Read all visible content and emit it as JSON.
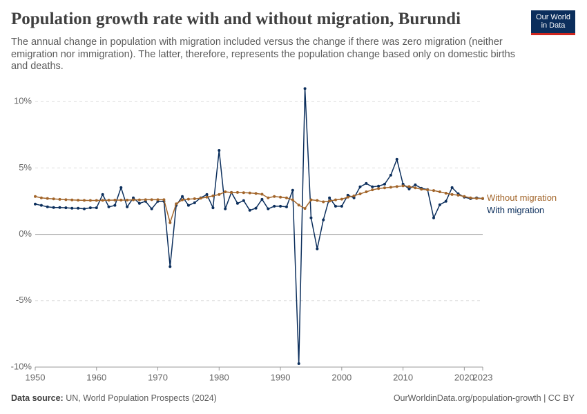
{
  "chart_data": {
    "type": "line",
    "title": "Population growth rate with and without migration, Burundi",
    "subtitle": "The annual change in population with migration included versus the change if there was zero migration (neither emigration nor immigration). The latter, therefore, represents the population change based only on domestic births and deaths.",
    "logo": [
      "Our World",
      "in Data"
    ],
    "source_label": "Data source:",
    "source": "UN, World Population Prospects (2024)",
    "footer_right": "OurWorldinData.org/population-growth | CC BY",
    "x": [
      1950,
      1951,
      1952,
      1953,
      1954,
      1955,
      1956,
      1957,
      1958,
      1959,
      1960,
      1961,
      1962,
      1963,
      1964,
      1965,
      1966,
      1967,
      1968,
      1969,
      1970,
      1971,
      1972,
      1973,
      1974,
      1975,
      1976,
      1977,
      1978,
      1979,
      1980,
      1981,
      1982,
      1983,
      1984,
      1985,
      1986,
      1987,
      1988,
      1989,
      1990,
      1991,
      1992,
      1993,
      1994,
      1995,
      1996,
      1997,
      1998,
      1999,
      2000,
      2001,
      2002,
      2003,
      2004,
      2005,
      2006,
      2007,
      2008,
      2009,
      2010,
      2011,
      2012,
      2013,
      2014,
      2015,
      2016,
      2017,
      2018,
      2019,
      2020,
      2021,
      2022,
      2023
    ],
    "series": [
      {
        "name": "With migration",
        "color": "#0b2e5c",
        "values": [
          2.28,
          2.18,
          2.07,
          2.02,
          2.02,
          2.0,
          1.97,
          1.97,
          1.92,
          2.0,
          2.0,
          3.0,
          2.07,
          2.18,
          3.52,
          2.07,
          2.75,
          2.33,
          2.49,
          1.92,
          2.49,
          2.49,
          -2.43,
          2.18,
          2.85,
          2.18,
          2.38,
          2.75,
          3.0,
          2.0,
          6.32,
          1.92,
          3.16,
          2.33,
          2.54,
          1.81,
          1.97,
          2.64,
          1.92,
          2.12,
          2.12,
          2.07,
          3.32,
          -9.74,
          10.98,
          1.24,
          -1.09,
          1.09,
          2.75,
          2.12,
          2.12,
          2.95,
          2.75,
          3.58,
          3.83,
          3.58,
          3.63,
          3.78,
          4.46,
          5.65,
          3.78,
          3.42,
          3.73,
          3.47,
          3.37,
          1.24,
          2.23,
          2.49,
          3.52,
          3.06,
          2.8,
          2.69,
          2.75,
          2.69
        ]
      },
      {
        "name": "Without migration",
        "color": "#a2652a",
        "values": [
          2.85,
          2.75,
          2.7,
          2.67,
          2.64,
          2.61,
          2.59,
          2.57,
          2.56,
          2.55,
          2.55,
          2.56,
          2.57,
          2.58,
          2.58,
          2.58,
          2.6,
          2.6,
          2.61,
          2.61,
          2.61,
          2.61,
          0.88,
          2.3,
          2.6,
          2.65,
          2.68,
          2.72,
          2.8,
          2.9,
          3.0,
          3.2,
          3.15,
          3.16,
          3.14,
          3.12,
          3.08,
          3.02,
          2.75,
          2.85,
          2.8,
          2.75,
          2.6,
          2.2,
          1.95,
          2.6,
          2.55,
          2.45,
          2.5,
          2.6,
          2.65,
          2.8,
          2.9,
          3.05,
          3.2,
          3.35,
          3.45,
          3.5,
          3.55,
          3.6,
          3.65,
          3.6,
          3.5,
          3.4,
          3.35,
          3.3,
          3.2,
          3.1,
          3.0,
          2.95,
          2.85,
          2.75,
          2.7,
          2.7
        ]
      }
    ],
    "xlim": [
      1950,
      2023
    ],
    "xticks": [
      1950,
      1960,
      1970,
      1980,
      1990,
      2000,
      2010,
      2020,
      2023
    ],
    "ylim": [
      -10,
      11
    ],
    "yticks": [
      {
        "value": -10,
        "label": "-10%"
      },
      {
        "value": -5,
        "label": "-5%"
      },
      {
        "value": 0,
        "label": "0%"
      },
      {
        "value": 5,
        "label": "5%"
      },
      {
        "value": 10,
        "label": "10%"
      }
    ],
    "grid": true
  }
}
